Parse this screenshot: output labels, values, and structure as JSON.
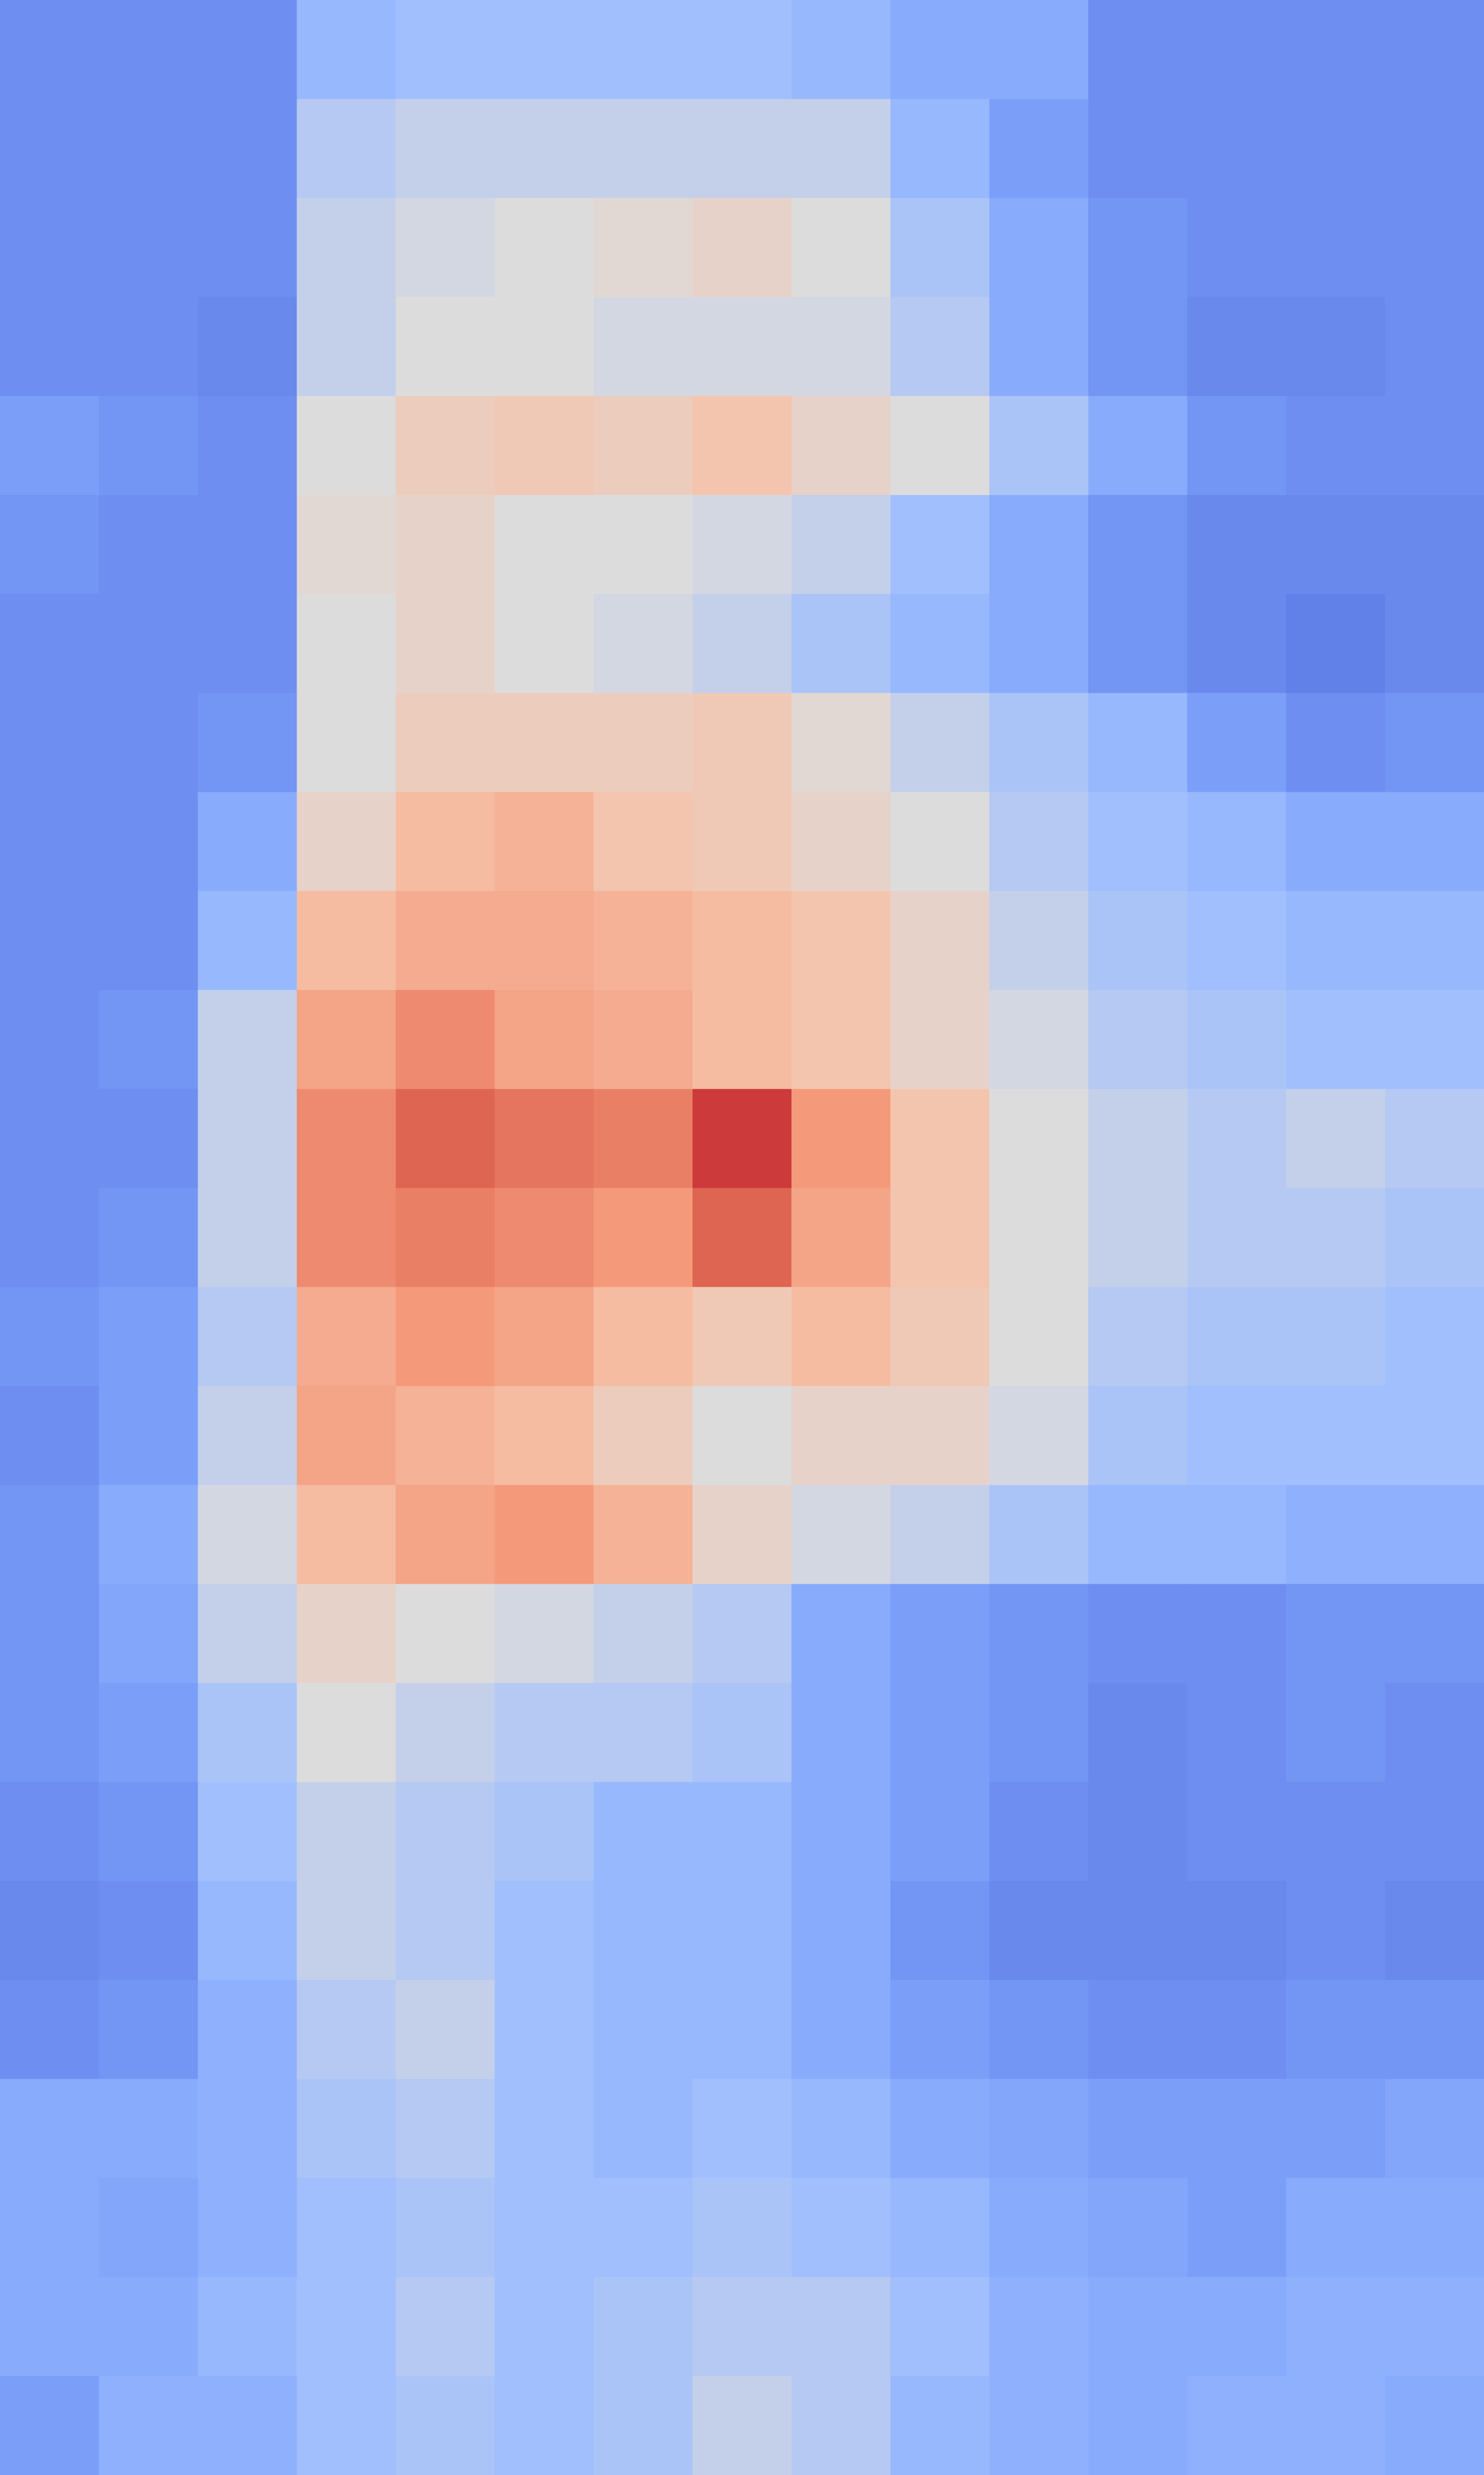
{
  "chart_data": {
    "type": "heatmap",
    "colormap": "coolwarm",
    "zlim": [
      0,
      1
    ],
    "values": [
      [
        0.2,
        0.2,
        0.2,
        0.35,
        0.38,
        0.38,
        0.38,
        0.38,
        0.35,
        0.3,
        0.3,
        0.2,
        0.2,
        0.2,
        0.2
      ],
      [
        0.2,
        0.2,
        0.2,
        0.42,
        0.45,
        0.45,
        0.45,
        0.45,
        0.45,
        0.35,
        0.25,
        0.2,
        0.2,
        0.2,
        0.2
      ],
      [
        0.2,
        0.2,
        0.2,
        0.45,
        0.48,
        0.5,
        0.52,
        0.55,
        0.5,
        0.4,
        0.3,
        0.22,
        0.2,
        0.2,
        0.2
      ],
      [
        0.2,
        0.2,
        0.18,
        0.45,
        0.5,
        0.5,
        0.48,
        0.48,
        0.48,
        0.42,
        0.3,
        0.22,
        0.18,
        0.18,
        0.2
      ],
      [
        0.25,
        0.22,
        0.2,
        0.5,
        0.58,
        0.6,
        0.58,
        0.62,
        0.55,
        0.5,
        0.4,
        0.3,
        0.22,
        0.2,
        0.2
      ],
      [
        0.22,
        0.2,
        0.2,
        0.52,
        0.55,
        0.5,
        0.5,
        0.48,
        0.45,
        0.38,
        0.3,
        0.22,
        0.18,
        0.18,
        0.18
      ],
      [
        0.2,
        0.2,
        0.2,
        0.5,
        0.55,
        0.5,
        0.48,
        0.45,
        0.4,
        0.35,
        0.3,
        0.22,
        0.18,
        0.15,
        0.18
      ],
      [
        0.2,
        0.2,
        0.22,
        0.5,
        0.58,
        0.58,
        0.58,
        0.6,
        0.52,
        0.45,
        0.4,
        0.35,
        0.25,
        0.2,
        0.22
      ],
      [
        0.2,
        0.2,
        0.3,
        0.55,
        0.65,
        0.68,
        0.62,
        0.6,
        0.55,
        0.5,
        0.42,
        0.38,
        0.35,
        0.3,
        0.3
      ],
      [
        0.2,
        0.2,
        0.35,
        0.65,
        0.7,
        0.7,
        0.68,
        0.65,
        0.62,
        0.55,
        0.45,
        0.4,
        0.38,
        0.35,
        0.35
      ],
      [
        0.2,
        0.22,
        0.45,
        0.72,
        0.78,
        0.72,
        0.7,
        0.65,
        0.62,
        0.55,
        0.48,
        0.42,
        0.4,
        0.38,
        0.38
      ],
      [
        0.2,
        0.2,
        0.45,
        0.78,
        0.85,
        0.82,
        0.8,
        0.92,
        0.75,
        0.62,
        0.5,
        0.45,
        0.42,
        0.45,
        0.42
      ],
      [
        0.2,
        0.22,
        0.45,
        0.78,
        0.8,
        0.78,
        0.75,
        0.85,
        0.72,
        0.62,
        0.5,
        0.45,
        0.42,
        0.42,
        0.4
      ],
      [
        0.22,
        0.25,
        0.42,
        0.7,
        0.75,
        0.72,
        0.65,
        0.6,
        0.65,
        0.6,
        0.5,
        0.42,
        0.4,
        0.4,
        0.38
      ],
      [
        0.2,
        0.25,
        0.45,
        0.72,
        0.68,
        0.65,
        0.58,
        0.5,
        0.55,
        0.55,
        0.48,
        0.4,
        0.38,
        0.38,
        0.38
      ],
      [
        0.22,
        0.3,
        0.48,
        0.65,
        0.72,
        0.75,
        0.68,
        0.55,
        0.48,
        0.45,
        0.4,
        0.35,
        0.35,
        0.32,
        0.32
      ],
      [
        0.22,
        0.28,
        0.45,
        0.55,
        0.5,
        0.48,
        0.45,
        0.42,
        0.3,
        0.25,
        0.22,
        0.2,
        0.2,
        0.22,
        0.22
      ],
      [
        0.22,
        0.25,
        0.4,
        0.5,
        0.45,
        0.42,
        0.42,
        0.4,
        0.3,
        0.25,
        0.22,
        0.18,
        0.2,
        0.22,
        0.2
      ],
      [
        0.2,
        0.22,
        0.38,
        0.45,
        0.42,
        0.4,
        0.35,
        0.35,
        0.3,
        0.25,
        0.2,
        0.18,
        0.2,
        0.2,
        0.2
      ],
      [
        0.18,
        0.2,
        0.35,
        0.45,
        0.42,
        0.38,
        0.35,
        0.35,
        0.3,
        0.22,
        0.18,
        0.18,
        0.18,
        0.2,
        0.18
      ],
      [
        0.2,
        0.22,
        0.32,
        0.42,
        0.45,
        0.38,
        0.35,
        0.35,
        0.3,
        0.25,
        0.22,
        0.2,
        0.2,
        0.22,
        0.22
      ],
      [
        0.3,
        0.3,
        0.32,
        0.4,
        0.42,
        0.38,
        0.35,
        0.38,
        0.35,
        0.3,
        0.28,
        0.25,
        0.25,
        0.25,
        0.28
      ],
      [
        0.3,
        0.28,
        0.32,
        0.38,
        0.4,
        0.38,
        0.38,
        0.4,
        0.38,
        0.35,
        0.3,
        0.28,
        0.25,
        0.3,
        0.3
      ],
      [
        0.3,
        0.3,
        0.35,
        0.38,
        0.42,
        0.38,
        0.4,
        0.42,
        0.42,
        0.38,
        0.32,
        0.3,
        0.3,
        0.32,
        0.32
      ],
      [
        0.25,
        0.32,
        0.32,
        0.38,
        0.4,
        0.38,
        0.4,
        0.45,
        0.42,
        0.35,
        0.32,
        0.3,
        0.32,
        0.32,
        0.3
      ]
    ]
  }
}
